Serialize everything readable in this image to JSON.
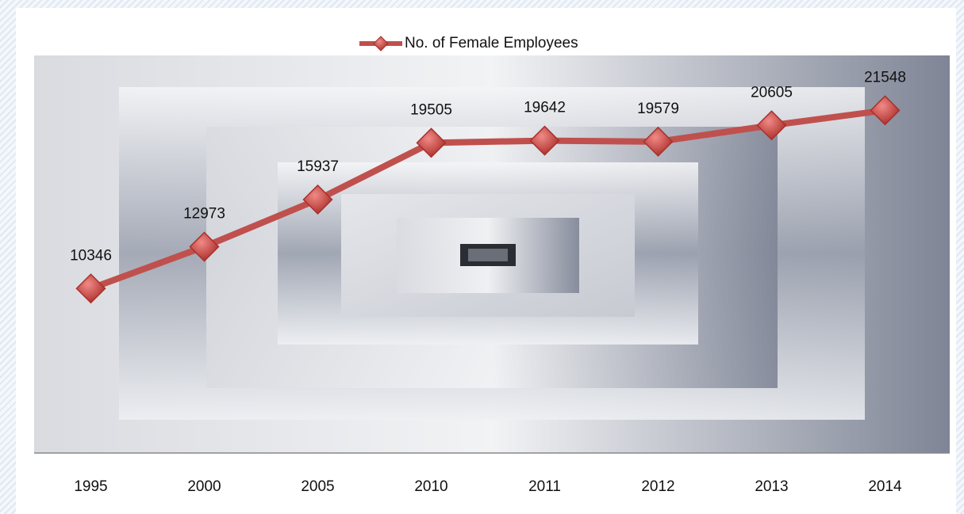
{
  "chart_data": {
    "type": "line",
    "series": [
      {
        "name": "No. of Female Employees",
        "color": "#c0504d",
        "values": [
          10346,
          12973,
          15937,
          19505,
          19642,
          19579,
          20605,
          21548
        ]
      }
    ],
    "categories": [
      "1995",
      "2000",
      "2005",
      "2010",
      "2011",
      "2012",
      "2013",
      "2014"
    ],
    "ylim": [
      0,
      25000
    ],
    "legend": "top"
  }
}
